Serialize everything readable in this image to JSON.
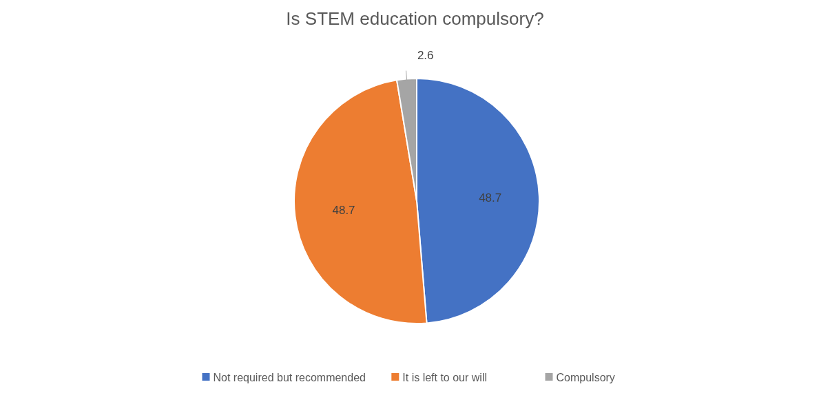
{
  "chart_data": {
    "type": "pie",
    "title": "Is STEM education compulsory?",
    "categories": [
      "Not required but recommended",
      "It is left to our will",
      "Compulsory"
    ],
    "values": [
      48.7,
      48.7,
      2.6
    ],
    "colors": [
      "#4472c4",
      "#ed7d31",
      "#a5a5a5"
    ],
    "data_labels": true,
    "legend": "bottom"
  }
}
